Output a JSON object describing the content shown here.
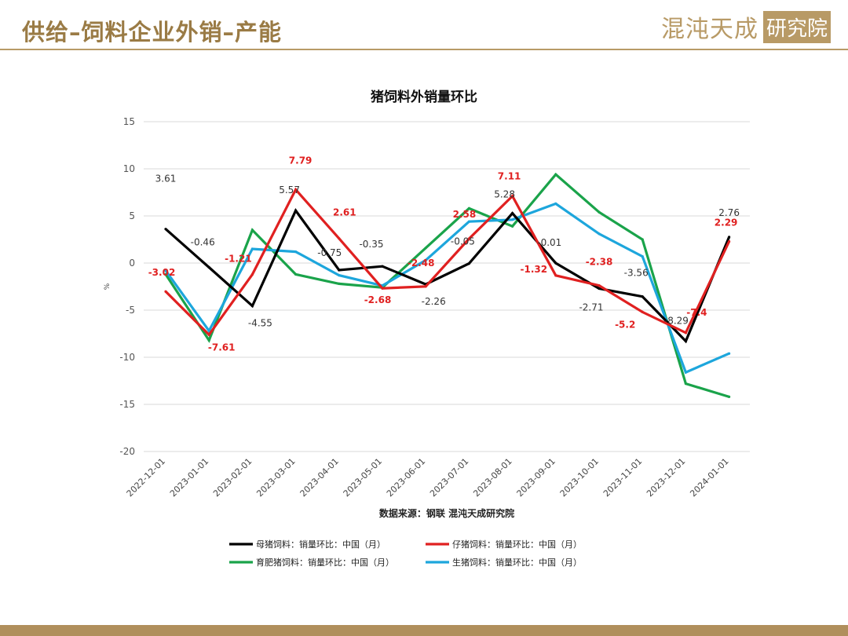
{
  "page": {
    "title": "供给–饲料企业外销–产能",
    "brand_text": "混沌天成",
    "brand_box": "研究院"
  },
  "colors": {
    "accent": "#9a7b45",
    "rule": "#b89a66",
    "footer": "#b08f5c"
  },
  "chart_data": {
    "type": "line",
    "title": "猪饲料外销量环比",
    "ylabel": "%",
    "ylim": [
      -20,
      15
    ],
    "yticks": [
      15,
      10,
      5,
      0,
      -5,
      -10,
      -15,
      -20
    ],
    "grid": true,
    "source": "数据来源：钢联  混沌天成研究院",
    "legend_position": "bottom",
    "x": [
      "2022-12-01",
      "2023-01-01",
      "2023-02-01",
      "2023-03-01",
      "2023-04-01",
      "2023-05-01",
      "2023-06-01",
      "2023-07-01",
      "2023-08-01",
      "2023-09-01",
      "2023-10-01",
      "2023-11-01",
      "2023-12-01",
      "2024-01-01"
    ],
    "series": [
      {
        "name": "母猪饲料：销量环比：中国（月）",
        "color": "#000000",
        "values": [
          3.61,
          -0.46,
          -4.55,
          5.57,
          -0.75,
          -0.35,
          -2.26,
          -0.05,
          5.28,
          -0.01,
          -2.71,
          -3.56,
          -8.29,
          2.76
        ],
        "labels": [
          "3.61",
          "-0.46",
          "-4.55",
          "5.57",
          "-0.75",
          "-0.35",
          "-2.26",
          "-0.05",
          "5.28",
          "-0.01",
          "-2.71",
          "-3.56",
          "-8.29",
          "2.76"
        ]
      },
      {
        "name": "仔猪饲料：销量环比：中国（月）",
        "color": "#e02020",
        "values": [
          -3.02,
          -7.61,
          -1.21,
          7.79,
          2.61,
          -2.68,
          -2.48,
          2.58,
          7.11,
          -1.32,
          -2.38,
          -5.2,
          -7.4,
          2.29
        ],
        "labels": [
          "-3.02",
          "-7.61",
          "-1.21",
          "7.79",
          "2.61",
          "-2.68",
          "-2.48",
          "2.58",
          "7.11",
          "-1.32",
          "-2.38",
          "-5.2",
          "-7.4",
          "2.29"
        ]
      },
      {
        "name": "育肥猪饲料：销量环比：中国（月）",
        "color": "#1aa34a",
        "values": [
          -1.2,
          -8.2,
          3.5,
          -1.2,
          -2.2,
          -2.6,
          1.6,
          5.8,
          3.9,
          9.4,
          5.4,
          2.5,
          -12.8,
          -14.2
        ],
        "labels": []
      },
      {
        "name": "生猪饲料：销量环比：中国（月）",
        "color": "#1da6dc",
        "values": [
          -0.8,
          -7.2,
          1.5,
          1.2,
          -1.3,
          -2.4,
          0.3,
          4.4,
          4.6,
          6.3,
          3.1,
          0.7,
          -11.6,
          -9.6
        ],
        "labels": []
      }
    ]
  }
}
